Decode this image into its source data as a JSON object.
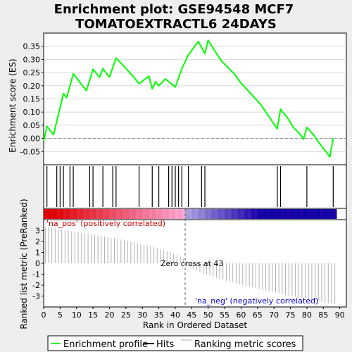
{
  "chart_data": {
    "type": "line",
    "title_line1": "Enrichment plot: GSE94548 MCF7",
    "title_line2": "TOMATOEXTRACTL6 24DAYS",
    "xlabel": "Rank in Ordered Dataset",
    "ylabel_top": "Enrichment score (ES)",
    "ylabel_bottom": "Ranked list metric (PreRanked)",
    "xlim": [
      0,
      92
    ],
    "x_ticks": [
      "0",
      "5",
      "10",
      "15",
      "20",
      "25",
      "30",
      "35",
      "40",
      "45",
      "50",
      "55",
      "60",
      "65",
      "70",
      "75",
      "80",
      "85",
      "90"
    ],
    "x_tick_values": [
      0,
      5,
      10,
      15,
      20,
      25,
      30,
      35,
      40,
      45,
      50,
      55,
      60,
      65,
      70,
      75,
      80,
      85,
      90
    ],
    "es_ylim": [
      -0.1,
      0.4
    ],
    "es_y_ticks": [
      "-0.05",
      "0.00",
      "0.05",
      "0.10",
      "0.15",
      "0.20",
      "0.25",
      "0.30",
      "0.35"
    ],
    "es_y_tick_values": [
      -0.05,
      0,
      0.05,
      0.1,
      0.15,
      0.2,
      0.25,
      0.3,
      0.35
    ],
    "metric_ylim": [
      -4,
      4
    ],
    "metric_y_ticks": [
      "-3",
      "-2",
      "-1",
      "0",
      "1",
      "2",
      "3"
    ],
    "metric_y_tick_values": [
      -3,
      -2,
      -1,
      0,
      1,
      2,
      3
    ],
    "es_curve": {
      "x": [
        0,
        1,
        3,
        5,
        6,
        7,
        9,
        13,
        15,
        17,
        18,
        20,
        22,
        24,
        27,
        29,
        32,
        33,
        34,
        35,
        37,
        40,
        42,
        44,
        47,
        49,
        50,
        52,
        54,
        58,
        60,
        62,
        66,
        71,
        72,
        74,
        76,
        78,
        79,
        80,
        82,
        84,
        87,
        88
      ],
      "y": [
        -0.01,
        0.046,
        0.014,
        0.118,
        0.17,
        0.155,
        0.246,
        0.181,
        0.263,
        0.232,
        0.265,
        0.233,
        0.305,
        0.28,
        0.238,
        0.208,
        0.237,
        0.188,
        0.215,
        0.2,
        0.226,
        0.195,
        0.265,
        0.318,
        0.368,
        0.322,
        0.373,
        0.333,
        0.295,
        0.244,
        0.21,
        0.183,
        0.128,
        0.036,
        0.111,
        0.08,
        0.04,
        0.015,
        -0.003,
        0.042,
        0.014,
        -0.022,
        -0.07,
        0.0
      ]
    },
    "hits": [
      1,
      4,
      5,
      6,
      8,
      9,
      14,
      15,
      18,
      21,
      22,
      29,
      33,
      35,
      38,
      39,
      40,
      41,
      42,
      44,
      48,
      49,
      71,
      72,
      80,
      88
    ],
    "zero_cross_rank": 43,
    "metric_start": 3.3,
    "metric_end": -3.8,
    "annotations": {
      "pos_label": "'na_pos' (positively correlated)",
      "neg_label": "'na_neg' (negatively correlated)",
      "zero_cross": "Zero cross at 43"
    },
    "legend": [
      "Enrichment profile",
      "Hits",
      "Ranking metric scores"
    ],
    "colors": {
      "es_line": "#00ff00",
      "hits": "#000000",
      "metric": "#b0b0b0",
      "pos_text": "#cc0000",
      "neg_text": "#0000cc",
      "bar_pos": "#e00000",
      "bar_mid": "#ffb0d8",
      "bar_neg": "#1e00a8"
    }
  }
}
